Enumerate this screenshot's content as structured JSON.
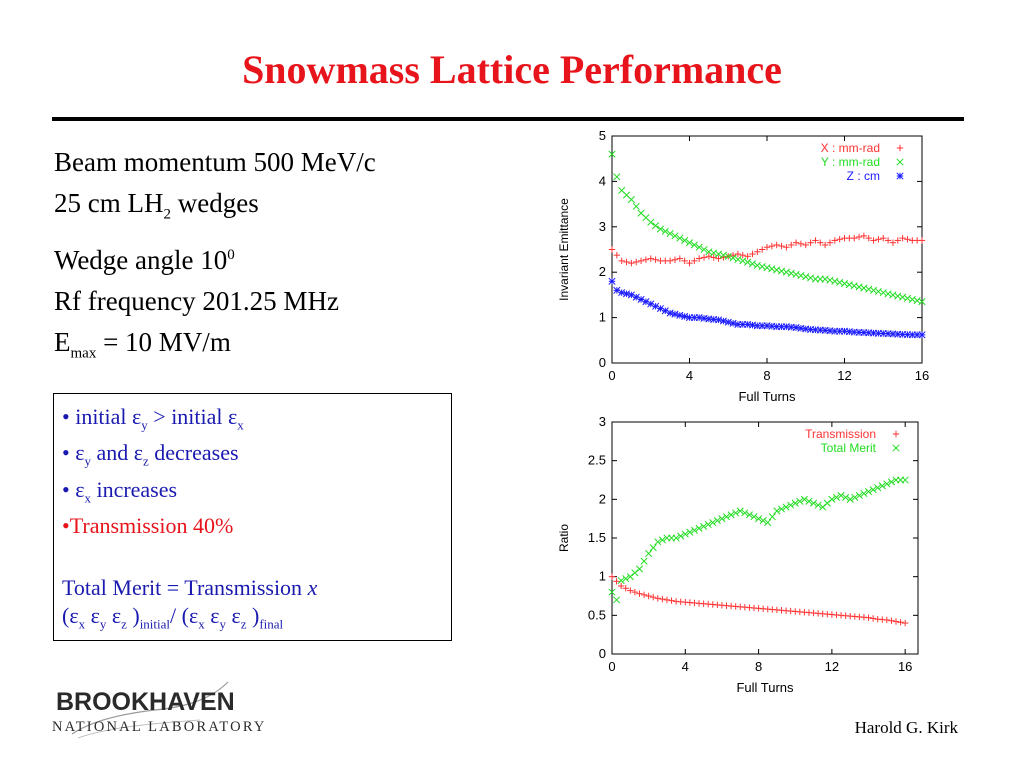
{
  "title": "Snowmass Lattice Performance",
  "params": {
    "momentum": "Beam momentum 500 MeV/c",
    "wedges_prefix": "25 cm LH",
    "wedges_sub": "2",
    "wedges_suffix": " wedges",
    "angle_prefix": "Wedge angle 10",
    "angle_sup": "0",
    "rf": "Rf frequency 201.25 MHz",
    "emax_prefix": "E",
    "emax_sub": "max",
    "emax_suffix": " = 10 MV/m"
  },
  "notes": {
    "l1_a": "• initial ε",
    "l1_sub1": "y",
    "l1_b": " > initial ε",
    "l1_sub2": "x",
    "l2_a": "• ε",
    "l2_sub1": "y",
    "l2_b": "  and ε",
    "l2_sub2": "z",
    "l2_c": " decreases",
    "l3_a": "• ε",
    "l3_sub1": "x",
    "l3_b": "  increases",
    "l4": "•Transmission 40%",
    "merit_line1_a": "Total Merit = Transmission ",
    "merit_line1_x": "x",
    "m2_open": "(ε",
    "m2_s1": "x",
    "m2_e2": " ε",
    "m2_s2": "y",
    "m2_e3": " ε",
    "m2_s3": "z",
    "m2_close": " )",
    "m2_s4": "initial",
    "m2_mid": "/ (ε",
    "m2_s5": "x",
    "m2_e5": " ε",
    "m2_s6": "y",
    "m2_e6": " ε",
    "m2_s7": "z",
    "m2_close2": " )",
    "m2_s8": "final"
  },
  "author": "Harold G. Kirk",
  "logo": {
    "top": "BROOKHAVEN",
    "bottom": "NATIONAL LABORATORY"
  },
  "colors": {
    "title": "#e8141c",
    "notes": "#1a1ab0",
    "red_series": "#ff3333",
    "green_series": "#22dd22",
    "blue_series": "#1a1aff"
  },
  "chart_data": [
    {
      "type": "scatter",
      "xlabel": "Full Turns",
      "ylabel": "Invariant Emittance",
      "xlim": [
        0,
        16
      ],
      "ylim": [
        0,
        5
      ],
      "xticks": [
        0,
        4,
        8,
        12,
        16
      ],
      "yticks": [
        0,
        1,
        2,
        3,
        4,
        5
      ],
      "legend_position": "top-right",
      "series": [
        {
          "name": "X : mm-rad",
          "marker": "+",
          "color": "#ff3333",
          "x": [
            0,
            0.5,
            1,
            1.5,
            2,
            2.5,
            3,
            3.5,
            4,
            4.5,
            5,
            5.5,
            6,
            6.5,
            7,
            7.5,
            8,
            8.5,
            9,
            9.5,
            10,
            10.5,
            11,
            11.5,
            12,
            12.5,
            13,
            13.5,
            14,
            14.5,
            15,
            15.5,
            16
          ],
          "y": [
            2.5,
            2.25,
            2.2,
            2.25,
            2.3,
            2.25,
            2.25,
            2.3,
            2.2,
            2.3,
            2.35,
            2.3,
            2.35,
            2.4,
            2.35,
            2.45,
            2.55,
            2.6,
            2.55,
            2.65,
            2.6,
            2.7,
            2.6,
            2.7,
            2.75,
            2.75,
            2.8,
            2.7,
            2.75,
            2.65,
            2.75,
            2.7,
            2.7
          ]
        },
        {
          "name": "Y : mm-rad",
          "marker": "x",
          "color": "#22dd22",
          "x": [
            0,
            0.25,
            0.5,
            1,
            1.5,
            2,
            2.5,
            3,
            3.5,
            4,
            4.5,
            5,
            5.5,
            6,
            6.5,
            7,
            7.5,
            8,
            8.5,
            9,
            9.5,
            10,
            10.5,
            11,
            11.5,
            12,
            12.5,
            13,
            13.5,
            14,
            14.5,
            15,
            15.5,
            16
          ],
          "y": [
            4.6,
            4.1,
            3.8,
            3.6,
            3.3,
            3.1,
            2.95,
            2.85,
            2.75,
            2.65,
            2.55,
            2.45,
            2.4,
            2.35,
            2.28,
            2.22,
            2.15,
            2.1,
            2.05,
            2.0,
            1.95,
            1.9,
            1.85,
            1.85,
            1.8,
            1.75,
            1.7,
            1.65,
            1.6,
            1.55,
            1.5,
            1.45,
            1.4,
            1.35
          ]
        },
        {
          "name": "Z : cm",
          "marker": "*",
          "color": "#1a1aff",
          "x": [
            0,
            0.25,
            0.5,
            1,
            1.5,
            2,
            2.5,
            3,
            3.5,
            4,
            4.5,
            5,
            5.5,
            6,
            6.5,
            7,
            7.5,
            8,
            8.5,
            9,
            9.5,
            10,
            10.5,
            11,
            11.5,
            12,
            12.5,
            13,
            13.5,
            14,
            14.5,
            15,
            15.5,
            16
          ],
          "y": [
            1.8,
            1.6,
            1.55,
            1.5,
            1.4,
            1.3,
            1.2,
            1.1,
            1.05,
            1.0,
            1.0,
            0.97,
            0.95,
            0.9,
            0.85,
            0.85,
            0.82,
            0.82,
            0.8,
            0.8,
            0.78,
            0.75,
            0.73,
            0.72,
            0.7,
            0.7,
            0.68,
            0.67,
            0.66,
            0.65,
            0.64,
            0.63,
            0.62,
            0.62
          ]
        }
      ]
    },
    {
      "type": "scatter",
      "xlabel": "Full Turns",
      "ylabel": "Ratio",
      "xlim": [
        0,
        16.7
      ],
      "ylim": [
        0,
        3
      ],
      "xticks": [
        0,
        4,
        8,
        12,
        16
      ],
      "yticks": [
        0,
        0.5,
        1,
        1.5,
        2,
        2.5,
        3
      ],
      "legend_position": "top-right",
      "series": [
        {
          "name": "Transmission",
          "marker": "+",
          "color": "#ff3333",
          "x": [
            0,
            0.5,
            1,
            1.5,
            2,
            2.5,
            3,
            3.5,
            4,
            4.5,
            5,
            5.5,
            6,
            6.5,
            7,
            7.5,
            8,
            8.5,
            9,
            9.5,
            10,
            10.5,
            11,
            11.5,
            12,
            12.5,
            13,
            13.5,
            14,
            14.5,
            15,
            15.5,
            16
          ],
          "y": [
            1.0,
            0.88,
            0.82,
            0.78,
            0.75,
            0.72,
            0.7,
            0.68,
            0.67,
            0.66,
            0.65,
            0.64,
            0.63,
            0.62,
            0.61,
            0.6,
            0.59,
            0.58,
            0.57,
            0.56,
            0.55,
            0.54,
            0.53,
            0.52,
            0.51,
            0.5,
            0.49,
            0.48,
            0.47,
            0.45,
            0.44,
            0.42,
            0.4
          ]
        },
        {
          "name": "Total Merit",
          "marker": "x",
          "color": "#22dd22",
          "x": [
            0,
            0.25,
            0.5,
            1,
            1.5,
            2,
            2.5,
            3,
            3.5,
            4,
            4.5,
            5,
            5.5,
            6,
            6.5,
            7,
            7.5,
            8,
            8.5,
            9,
            9.5,
            10,
            10.5,
            11,
            11.5,
            12,
            12.5,
            13,
            13.5,
            14,
            14.5,
            15,
            15.5,
            16
          ],
          "y": [
            0.8,
            0.7,
            0.95,
            1.0,
            1.1,
            1.3,
            1.45,
            1.5,
            1.5,
            1.55,
            1.6,
            1.65,
            1.7,
            1.75,
            1.8,
            1.85,
            1.8,
            1.75,
            1.7,
            1.85,
            1.9,
            1.95,
            2.0,
            1.95,
            1.9,
            2.0,
            2.05,
            2.0,
            2.05,
            2.1,
            2.15,
            2.2,
            2.25,
            2.25
          ]
        }
      ]
    }
  ]
}
